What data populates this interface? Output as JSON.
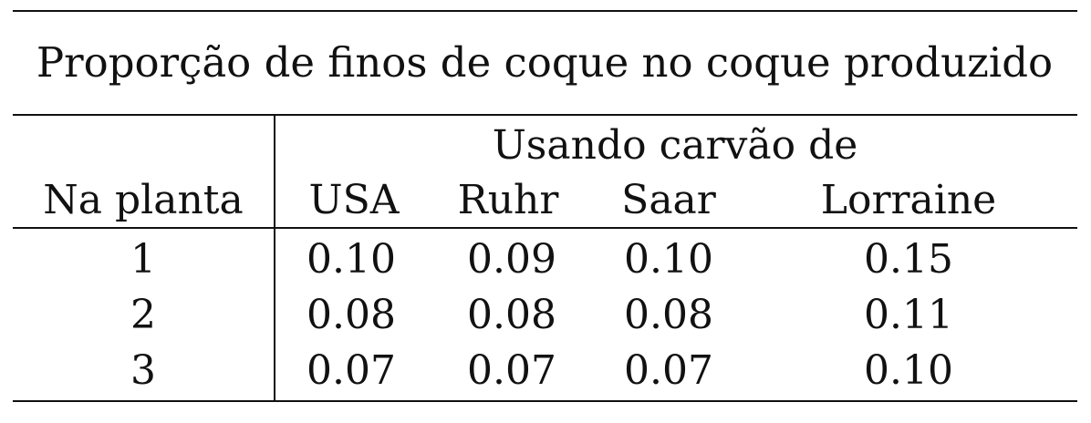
{
  "title": "Proporção de finos de coque no coque produzido",
  "group_header": "Usando carvão de",
  "row_header": "Na planta",
  "columns": [
    "USA",
    "Ruhr",
    "Saar",
    "Lorraine"
  ],
  "rows": [
    {
      "label": "1",
      "values": [
        "0.10",
        "0.09",
        "0.10",
        "0.15"
      ]
    },
    {
      "label": "2",
      "values": [
        "0.08",
        "0.08",
        "0.08",
        "0.11"
      ]
    },
    {
      "label": "3",
      "values": [
        "0.07",
        "0.07",
        "0.07",
        "0.10"
      ]
    }
  ]
}
